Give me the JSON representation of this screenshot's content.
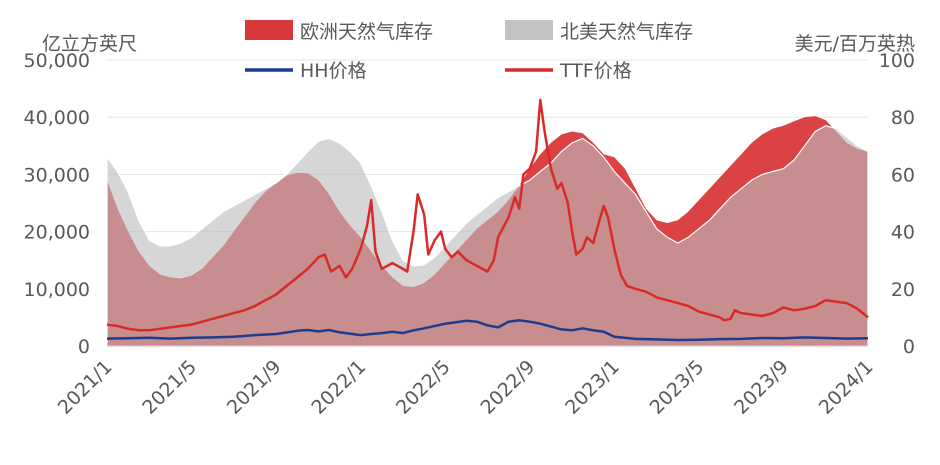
{
  "chart_data": {
    "type": "area",
    "units": {
      "left": "亿立方英尺",
      "right": "美元/百万英热"
    },
    "left_axis": {
      "ticks": [
        "0",
        "10,000",
        "20,000",
        "30,000",
        "40,000",
        "50,000"
      ],
      "ylim": [
        0,
        50000
      ]
    },
    "right_axis": {
      "ticks": [
        "0",
        "20",
        "40",
        "60",
        "80",
        "100"
      ],
      "ylim": [
        0,
        100
      ]
    },
    "x_ticks": [
      "2021/1",
      "2021/5",
      "2021/9",
      "2022/1",
      "2022/5",
      "2022/9",
      "2023/1",
      "2023/5",
      "2023/9",
      "2024/1"
    ],
    "x_tick_months": [
      0,
      4,
      8,
      12,
      16,
      20,
      24,
      28,
      32,
      36
    ],
    "legend": [
      {
        "label": "欧洲天然气库存",
        "kind": "area",
        "color": "#D9383A"
      },
      {
        "label": "北美天然气库存",
        "kind": "area",
        "color": "#C3C3C3"
      },
      {
        "label": "HH价格",
        "kind": "line",
        "color": "#1F3C8C"
      },
      {
        "label": "TTF价格",
        "kind": "line",
        "color": "#D92A2A"
      }
    ],
    "series": [
      {
        "name": "欧洲天然气库存",
        "axis": "left",
        "points": [
          [
            0,
            29000
          ],
          [
            0.5,
            24000
          ],
          [
            1,
            20000
          ],
          [
            1.5,
            16500
          ],
          [
            2,
            14000
          ],
          [
            2.5,
            12500
          ],
          [
            3,
            12000
          ],
          [
            3.5,
            11800
          ],
          [
            4,
            12300
          ],
          [
            4.5,
            13500
          ],
          [
            5,
            15500
          ],
          [
            5.5,
            17500
          ],
          [
            6,
            20000
          ],
          [
            6.5,
            22500
          ],
          [
            7,
            25000
          ],
          [
            7.5,
            27000
          ],
          [
            8,
            28500
          ],
          [
            8.5,
            29800
          ],
          [
            9,
            30300
          ],
          [
            9.5,
            30200
          ],
          [
            10,
            29000
          ],
          [
            10.5,
            26500
          ],
          [
            11,
            23500
          ],
          [
            11.5,
            21000
          ],
          [
            12,
            19000
          ],
          [
            12.5,
            16500
          ],
          [
            13,
            14000
          ],
          [
            13.5,
            12000
          ],
          [
            14,
            10500
          ],
          [
            14.5,
            10300
          ],
          [
            15,
            11000
          ],
          [
            15.5,
            12500
          ],
          [
            16,
            14500
          ],
          [
            16.5,
            16500
          ],
          [
            17,
            18500
          ],
          [
            17.5,
            20500
          ],
          [
            18,
            22000
          ],
          [
            18.5,
            23500
          ],
          [
            19,
            25500
          ],
          [
            19.5,
            28000
          ],
          [
            20,
            31000
          ],
          [
            20.5,
            33500
          ],
          [
            21,
            35500
          ],
          [
            21.5,
            37000
          ],
          [
            22,
            37500
          ],
          [
            22.5,
            37200
          ],
          [
            23,
            35500
          ],
          [
            23.5,
            33500
          ],
          [
            24,
            33000
          ],
          [
            24.5,
            31000
          ],
          [
            25,
            27500
          ],
          [
            25.5,
            24000
          ],
          [
            26,
            22000
          ],
          [
            26.5,
            21500
          ],
          [
            27,
            22000
          ],
          [
            27.5,
            23500
          ],
          [
            28,
            25500
          ],
          [
            28.5,
            27500
          ],
          [
            29,
            29500
          ],
          [
            29.5,
            31500
          ],
          [
            30,
            33500
          ],
          [
            30.5,
            35500
          ],
          [
            31,
            37000
          ],
          [
            31.5,
            38000
          ],
          [
            32,
            38500
          ],
          [
            32.5,
            39300
          ],
          [
            33,
            40000
          ],
          [
            33.5,
            40200
          ],
          [
            34,
            39500
          ],
          [
            34.5,
            37500
          ],
          [
            35,
            35500
          ],
          [
            35.5,
            34500
          ],
          [
            36,
            34000
          ]
        ]
      },
      {
        "name": "北美天然气库存",
        "axis": "left",
        "points": [
          [
            0,
            33000
          ],
          [
            0.5,
            30500
          ],
          [
            1,
            27000
          ],
          [
            1.5,
            22000
          ],
          [
            2,
            18500
          ],
          [
            2.5,
            17500
          ],
          [
            3,
            17500
          ],
          [
            3.5,
            18000
          ],
          [
            4,
            19000
          ],
          [
            4.5,
            20500
          ],
          [
            5,
            22000
          ],
          [
            5.5,
            23500
          ],
          [
            6,
            24500
          ],
          [
            6.5,
            25500
          ],
          [
            7,
            26500
          ],
          [
            7.5,
            27500
          ],
          [
            8,
            28500
          ],
          [
            8.5,
            30000
          ],
          [
            9,
            32000
          ],
          [
            9.5,
            34000
          ],
          [
            10,
            35800
          ],
          [
            10.5,
            36300
          ],
          [
            11,
            35500
          ],
          [
            11.5,
            34000
          ],
          [
            12,
            32000
          ],
          [
            12.5,
            28000
          ],
          [
            13,
            23500
          ],
          [
            13.5,
            18500
          ],
          [
            14,
            15000
          ],
          [
            14.5,
            14000
          ],
          [
            15,
            14200
          ],
          [
            15.5,
            15500
          ],
          [
            16,
            17500
          ],
          [
            16.5,
            19500
          ],
          [
            17,
            21500
          ],
          [
            17.5,
            23000
          ],
          [
            18,
            24500
          ],
          [
            18.5,
            26000
          ],
          [
            19,
            27000
          ],
          [
            19.5,
            28000
          ],
          [
            20,
            29000
          ],
          [
            20.5,
            30500
          ],
          [
            21,
            32000
          ],
          [
            21.5,
            34000
          ],
          [
            22,
            35500
          ],
          [
            22.5,
            36300
          ],
          [
            23,
            35000
          ],
          [
            23.5,
            33000
          ],
          [
            24,
            30500
          ],
          [
            24.5,
            28500
          ],
          [
            25,
            26500
          ],
          [
            25.5,
            23500
          ],
          [
            26,
            20500
          ],
          [
            26.5,
            19000
          ],
          [
            27,
            18000
          ],
          [
            27.5,
            19000
          ],
          [
            28,
            20500
          ],
          [
            28.5,
            22000
          ],
          [
            29,
            24000
          ],
          [
            29.5,
            26000
          ],
          [
            30,
            27500
          ],
          [
            30.5,
            29000
          ],
          [
            31,
            30000
          ],
          [
            31.5,
            30500
          ],
          [
            32,
            31000
          ],
          [
            32.5,
            32500
          ],
          [
            33,
            35000
          ],
          [
            33.5,
            37500
          ],
          [
            34,
            38500
          ],
          [
            34.5,
            38000
          ],
          [
            35,
            36500
          ],
          [
            35.5,
            35000
          ],
          [
            36,
            34000
          ]
        ]
      },
      {
        "name": "HH价格",
        "axis": "right",
        "points": [
          [
            0,
            2.6
          ],
          [
            1,
            2.7
          ],
          [
            2,
            2.9
          ],
          [
            3,
            2.6
          ],
          [
            4,
            2.9
          ],
          [
            5,
            3.0
          ],
          [
            6,
            3.2
          ],
          [
            7,
            3.8
          ],
          [
            8,
            4.2
          ],
          [
            9,
            5.3
          ],
          [
            9.5,
            5.6
          ],
          [
            10,
            5.1
          ],
          [
            10.5,
            5.6
          ],
          [
            11,
            4.8
          ],
          [
            12,
            3.8
          ],
          [
            12.5,
            4.2
          ],
          [
            13,
            4.5
          ],
          [
            13.5,
            5.0
          ],
          [
            14,
            4.5
          ],
          [
            14.5,
            5.5
          ],
          [
            15,
            6.2
          ],
          [
            16,
            7.8
          ],
          [
            17,
            8.8
          ],
          [
            17.5,
            8.5
          ],
          [
            18,
            7.2
          ],
          [
            18.5,
            6.5
          ],
          [
            19,
            8.5
          ],
          [
            19.5,
            9.0
          ],
          [
            20,
            8.5
          ],
          [
            20.5,
            7.8
          ],
          [
            21,
            6.8
          ],
          [
            21.5,
            5.8
          ],
          [
            22,
            5.5
          ],
          [
            22.5,
            6.2
          ],
          [
            23,
            5.5
          ],
          [
            23.5,
            5.0
          ],
          [
            24,
            3.2
          ],
          [
            25,
            2.5
          ],
          [
            26,
            2.3
          ],
          [
            27,
            2.1
          ],
          [
            28,
            2.2
          ],
          [
            29,
            2.4
          ],
          [
            30,
            2.5
          ],
          [
            31,
            2.8
          ],
          [
            32,
            2.7
          ],
          [
            33,
            3.0
          ],
          [
            34,
            2.8
          ],
          [
            35,
            2.6
          ],
          [
            36,
            2.7
          ]
        ]
      },
      {
        "name": "TTF价格",
        "axis": "right",
        "points": [
          [
            0,
            7.5
          ],
          [
            0.5,
            7.0
          ],
          [
            1,
            6.0
          ],
          [
            1.5,
            5.5
          ],
          [
            2,
            5.5
          ],
          [
            2.5,
            6.0
          ],
          [
            3,
            6.5
          ],
          [
            3.5,
            7.0
          ],
          [
            4,
            7.5
          ],
          [
            4.5,
            8.5
          ],
          [
            5,
            9.5
          ],
          [
            5.5,
            10.5
          ],
          [
            6,
            11.5
          ],
          [
            6.5,
            12.5
          ],
          [
            7,
            14
          ],
          [
            7.5,
            16
          ],
          [
            8,
            18
          ],
          [
            8.5,
            21
          ],
          [
            9,
            24
          ],
          [
            9.5,
            27
          ],
          [
            10,
            31
          ],
          [
            10.3,
            32
          ],
          [
            10.6,
            26
          ],
          [
            11,
            28
          ],
          [
            11.3,
            24
          ],
          [
            11.6,
            27
          ],
          [
            12,
            34
          ],
          [
            12.3,
            42
          ],
          [
            12.5,
            51
          ],
          [
            12.7,
            33
          ],
          [
            13,
            27
          ],
          [
            13.5,
            29
          ],
          [
            14,
            27
          ],
          [
            14.2,
            26
          ],
          [
            14.5,
            40
          ],
          [
            14.7,
            53
          ],
          [
            15,
            46
          ],
          [
            15.2,
            32
          ],
          [
            15.5,
            37
          ],
          [
            15.8,
            40
          ],
          [
            16,
            34
          ],
          [
            16.3,
            31
          ],
          [
            16.6,
            33
          ],
          [
            17,
            30
          ],
          [
            17.5,
            28
          ],
          [
            18,
            26
          ],
          [
            18.3,
            30
          ],
          [
            18.5,
            38
          ],
          [
            19,
            45
          ],
          [
            19.3,
            52
          ],
          [
            19.5,
            48
          ],
          [
            19.7,
            60
          ],
          [
            20,
            62
          ],
          [
            20.3,
            68
          ],
          [
            20.5,
            86
          ],
          [
            20.7,
            75
          ],
          [
            21,
            62
          ],
          [
            21.3,
            55
          ],
          [
            21.5,
            57
          ],
          [
            21.8,
            50
          ],
          [
            22,
            40
          ],
          [
            22.2,
            32
          ],
          [
            22.5,
            34
          ],
          [
            22.7,
            38
          ],
          [
            23,
            36
          ],
          [
            23.3,
            44
          ],
          [
            23.5,
            49
          ],
          [
            23.7,
            45
          ],
          [
            24,
            34
          ],
          [
            24.3,
            25
          ],
          [
            24.6,
            21
          ],
          [
            25,
            20
          ],
          [
            25.5,
            19
          ],
          [
            26,
            17
          ],
          [
            26.5,
            16
          ],
          [
            27,
            15
          ],
          [
            27.5,
            14
          ],
          [
            28,
            12
          ],
          [
            28.5,
            11
          ],
          [
            29,
            10
          ],
          [
            29.2,
            9
          ],
          [
            29.5,
            9.5
          ],
          [
            29.7,
            12.5
          ],
          [
            30,
            11.5
          ],
          [
            30.5,
            11
          ],
          [
            31,
            10.5
          ],
          [
            31.5,
            11.5
          ],
          [
            32,
            13.5
          ],
          [
            32.5,
            12.5
          ],
          [
            33,
            13
          ],
          [
            33.5,
            14
          ],
          [
            34,
            16
          ],
          [
            34.5,
            15.5
          ],
          [
            35,
            15
          ],
          [
            35.5,
            13
          ],
          [
            36,
            10
          ]
        ]
      }
    ]
  }
}
